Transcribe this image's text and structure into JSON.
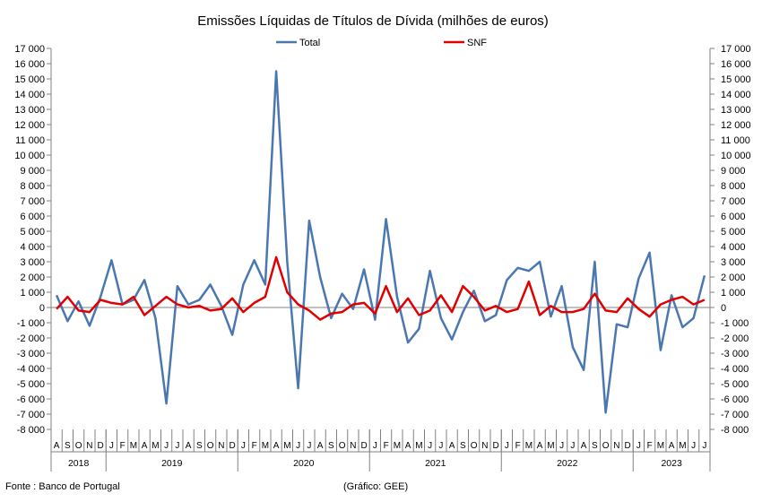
{
  "footer": {
    "source": "Fonte : Banco de Portugal",
    "credit": "(Gráfico: GEE)"
  },
  "chart_data": {
    "type": "line",
    "title": "Emissões Líquidas de Títulos de Dívida (milhões de euros)",
    "xlabel": "",
    "ylabel": "",
    "ylim": [
      -8000,
      17000
    ],
    "y_step": 1000,
    "y_tick_labels": [
      "-8 000",
      "-7 000",
      "-6 000",
      "-5 000",
      "-4 000",
      "-3 000",
      "-2 000",
      "-1 000",
      "0",
      "1 000",
      "2 000",
      "3 000",
      "4 000",
      "5 000",
      "6 000",
      "7 000",
      "8 000",
      "9 000",
      "10 000",
      "11 000",
      "12 000",
      "13 000",
      "14 000",
      "15 000",
      "16 000",
      "17 000"
    ],
    "secondary_axis": true,
    "grid": false,
    "legend_position": "top-center",
    "month_labels": [
      "A",
      "S",
      "O",
      "N",
      "D",
      "J",
      "F",
      "M",
      "A",
      "M",
      "J",
      "J",
      "A",
      "S",
      "O",
      "N",
      "D",
      "J",
      "F",
      "M",
      "A",
      "M",
      "J",
      "J",
      "A",
      "S",
      "O",
      "N",
      "D",
      "J",
      "F",
      "M",
      "A",
      "M",
      "J",
      "J",
      "A",
      "S",
      "O",
      "N",
      "D",
      "J",
      "F",
      "M",
      "A",
      "M",
      "J",
      "J",
      "A",
      "S",
      "O",
      "N",
      "D",
      "J",
      "F",
      "M",
      "A",
      "M",
      "J",
      "J"
    ],
    "year_groups": [
      {
        "label": "2018",
        "count": 5
      },
      {
        "label": "2019",
        "count": 12
      },
      {
        "label": "2020",
        "count": 12
      },
      {
        "label": "2021",
        "count": 12
      },
      {
        "label": "2022",
        "count": 12
      },
      {
        "label": "2023",
        "count": 7
      }
    ],
    "series": [
      {
        "name": "Total",
        "color": "#4a77b0",
        "values": [
          800,
          -900,
          400,
          -1200,
          700,
          3100,
          200,
          500,
          1800,
          -700,
          -6300,
          1400,
          200,
          500,
          1500,
          100,
          -1800,
          1500,
          3100,
          1500,
          15500,
          3000,
          -5300,
          5700,
          2000,
          -700,
          900,
          -100,
          2500,
          -800,
          5800,
          700,
          -2300,
          -1400,
          2400,
          -700,
          -2100,
          -300,
          1100,
          -900,
          -500,
          1800,
          2600,
          2400,
          3000,
          -600,
          1400,
          -2600,
          -4100,
          3000,
          -6900,
          -1100,
          -1300,
          1900,
          3600,
          -2800,
          800,
          -1300,
          -700,
          2100
        ]
      },
      {
        "name": "SNF",
        "color": "#e00000",
        "values": [
          -100,
          700,
          -200,
          -300,
          500,
          300,
          200,
          700,
          -500,
          100,
          700,
          200,
          0,
          100,
          -200,
          -100,
          600,
          -300,
          300,
          700,
          3300,
          1000,
          200,
          -200,
          -800,
          -400,
          -300,
          200,
          300,
          -400,
          1400,
          -300,
          600,
          -500,
          -200,
          800,
          -300,
          1400,
          700,
          -200,
          100,
          -300,
          -100,
          1700,
          -500,
          100,
          -300,
          -300,
          -100,
          900,
          -200,
          -300,
          600,
          -100,
          -600,
          200,
          500,
          700,
          200,
          500
        ]
      }
    ]
  }
}
